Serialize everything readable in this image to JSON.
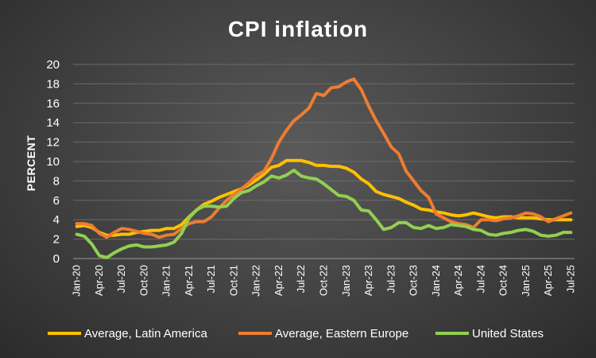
{
  "chart_data": {
    "type": "line",
    "title": "CPI inflation",
    "xlabel": "",
    "ylabel": "PERCENT",
    "ylim": [
      0,
      20
    ],
    "yticks": [
      0,
      2,
      4,
      6,
      8,
      10,
      12,
      14,
      16,
      18,
      20
    ],
    "grid": true,
    "legend_position": "bottom",
    "x_tick_labels": [
      "Jan-20",
      "Apr-20",
      "Jul-20",
      "Oct-20",
      "Jan-21",
      "Apr-21",
      "Jul-21",
      "Oct-21",
      "Jan-22",
      "Apr-22",
      "Jul-22",
      "Oct-22",
      "Jan-23",
      "Apr-23",
      "Jul-23",
      "Oct-23",
      "Jan-24",
      "Apr-24",
      "Jul-24",
      "Oct-24",
      "Jan-25",
      "Apr-25",
      "Jul-25"
    ],
    "x_tick_every": 3,
    "series": [
      {
        "name": "Average, Latin America",
        "color": "#FFC000",
        "values": [
          3.3,
          3.4,
          3.2,
          2.7,
          2.4,
          2.4,
          2.5,
          2.5,
          2.7,
          2.8,
          2.9,
          2.9,
          3.1,
          3.1,
          3.5,
          4.3,
          5.0,
          5.6,
          5.9,
          6.3,
          6.6,
          6.9,
          7.2,
          7.6,
          8.1,
          8.7,
          9.4,
          9.6,
          10.1,
          10.1,
          10.1,
          9.9,
          9.6,
          9.6,
          9.5,
          9.5,
          9.3,
          8.9,
          8.2,
          7.7,
          6.9,
          6.6,
          6.4,
          6.2,
          5.8,
          5.5,
          5.1,
          5.0,
          4.8,
          4.7,
          4.5,
          4.4,
          4.5,
          4.7,
          4.5,
          4.3,
          4.2,
          4.3,
          4.3,
          4.2,
          4.2,
          4.2,
          4.1,
          4.0,
          4.0,
          4.0,
          4.0
        ]
      },
      {
        "name": "Average, Eastern Europe",
        "color": "#ED7D31",
        "values": [
          3.6,
          3.6,
          3.4,
          2.6,
          2.2,
          2.7,
          3.1,
          3.0,
          2.8,
          2.6,
          2.5,
          2.2,
          2.4,
          2.5,
          3.1,
          3.6,
          3.8,
          3.8,
          4.3,
          5.2,
          6.0,
          6.6,
          7.2,
          7.8,
          8.6,
          9.0,
          10.3,
          12.0,
          13.2,
          14.2,
          14.8,
          15.5,
          17.0,
          16.8,
          17.6,
          17.7,
          18.2,
          18.5,
          17.4,
          15.7,
          14.2,
          12.9,
          11.5,
          10.8,
          9.0,
          8.0,
          7.0,
          6.3,
          4.6,
          4.2,
          3.8,
          3.6,
          3.5,
          3.2,
          4.0,
          4.0,
          3.9,
          4.1,
          4.2,
          4.4,
          4.7,
          4.6,
          4.3,
          3.8,
          4.1,
          4.4,
          4.7
        ]
      },
      {
        "name": "United States",
        "color": "#92D050",
        "values": [
          2.5,
          2.3,
          1.5,
          0.3,
          0.1,
          0.6,
          1.0,
          1.3,
          1.4,
          1.2,
          1.2,
          1.3,
          1.4,
          1.7,
          2.6,
          4.2,
          5.0,
          5.4,
          5.4,
          5.3,
          5.4,
          6.2,
          6.8,
          7.0,
          7.5,
          7.9,
          8.5,
          8.3,
          8.6,
          9.1,
          8.5,
          8.3,
          8.2,
          7.7,
          7.1,
          6.5,
          6.4,
          6.0,
          5.0,
          4.9,
          4.0,
          3.0,
          3.2,
          3.7,
          3.7,
          3.2,
          3.1,
          3.4,
          3.1,
          3.2,
          3.5,
          3.4,
          3.3,
          3.0,
          2.9,
          2.5,
          2.4,
          2.6,
          2.7,
          2.9,
          3.0,
          2.8,
          2.4,
          2.3,
          2.4,
          2.7,
          2.7
        ]
      }
    ]
  }
}
